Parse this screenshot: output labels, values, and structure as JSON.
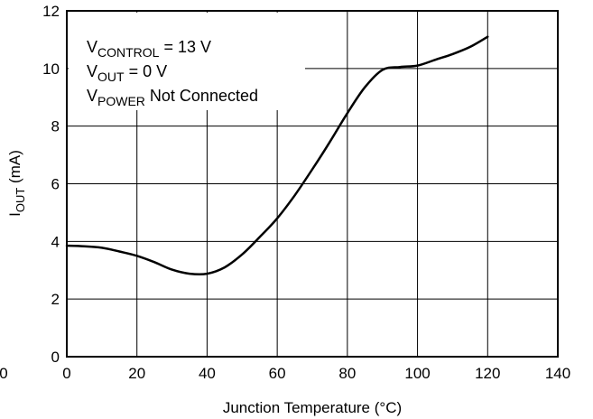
{
  "chart_data": {
    "type": "line",
    "xlabel": "Junction Temperature (°C)",
    "ylabel": {
      "main": "I",
      "sub": "OUT",
      "rest": " (mA)"
    },
    "xlim": [
      0,
      140
    ],
    "ylim": [
      0,
      12
    ],
    "x_ticks": [
      "0",
      "20",
      "40",
      "60",
      "80",
      "100",
      "120",
      "140"
    ],
    "y_ticks": [
      "0",
      "2",
      "4",
      "6",
      "8",
      "10",
      "12"
    ],
    "outer_x_tick": "0",
    "grid": true,
    "annotations": [
      {
        "main": "V",
        "sub": "CONTROL",
        "rest": " = 13 V"
      },
      {
        "main": "V",
        "sub": "OUT",
        "rest": " = 0 V"
      },
      {
        "main": "V",
        "sub": "POWER",
        "rest": " Not Connected"
      }
    ],
    "series": [
      {
        "x": [
          0,
          5,
          10,
          15,
          20,
          25,
          30,
          35,
          40,
          45,
          50,
          55,
          60,
          65,
          70,
          75,
          80,
          85,
          90,
          95,
          100,
          105,
          110,
          115,
          120
        ],
        "y": [
          3.85,
          3.83,
          3.78,
          3.65,
          3.5,
          3.28,
          3.02,
          2.88,
          2.88,
          3.1,
          3.55,
          4.15,
          4.8,
          5.6,
          6.5,
          7.45,
          8.45,
          9.35,
          9.95,
          10.05,
          10.1,
          10.3,
          10.5,
          10.75,
          11.1
        ]
      }
    ]
  }
}
